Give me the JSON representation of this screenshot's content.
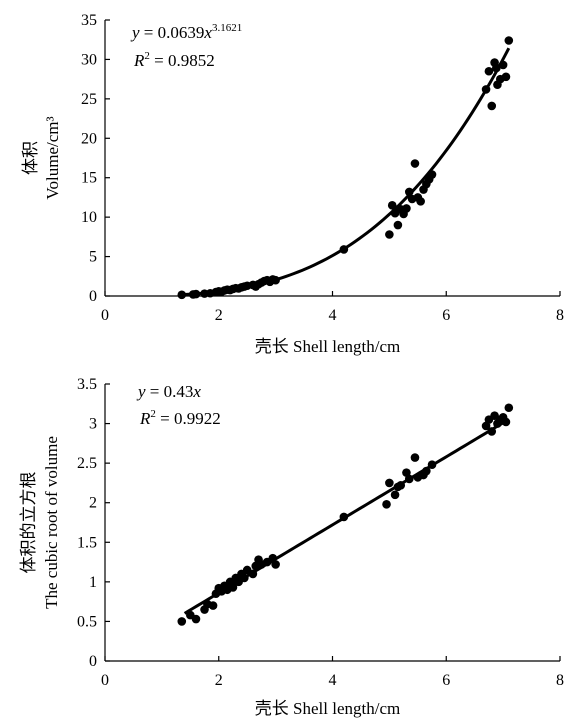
{
  "chart_data": [
    {
      "type": "scatter",
      "xlabel": "壳长 Shell length/cm",
      "ylabel_cn": "体积",
      "ylabel_en": "Volume/cm³",
      "xlim": [
        0,
        8
      ],
      "ylim": [
        0,
        35
      ],
      "xticks": [
        0,
        2,
        4,
        6,
        8
      ],
      "yticks": [
        0,
        5,
        10,
        15,
        20,
        25,
        30,
        35
      ],
      "xtick_labels": [
        "0",
        "2",
        "4",
        "6",
        "8"
      ],
      "ytick_labels": [
        "0",
        "5",
        "10",
        "15",
        "20",
        "25",
        "30",
        "35"
      ],
      "equation": {
        "lhs": "y",
        "rhs": " = 0.0639",
        "var": "x",
        "exponent": "3.1621"
      },
      "r_squared": {
        "label": "R",
        "sup": "2",
        "value": " = 0.9852"
      },
      "fit": {
        "kind": "power",
        "a": 0.0639,
        "b": 3.1621,
        "x_range": [
          1.4,
          7.1
        ]
      },
      "grid": false,
      "points": [
        [
          1.35,
          0.15
        ],
        [
          1.55,
          0.2
        ],
        [
          1.6,
          0.25
        ],
        [
          1.75,
          0.3
        ],
        [
          1.85,
          0.35
        ],
        [
          1.95,
          0.5
        ],
        [
          2.0,
          0.6
        ],
        [
          2.05,
          0.55
        ],
        [
          2.1,
          0.7
        ],
        [
          2.15,
          0.8
        ],
        [
          2.2,
          0.75
        ],
        [
          2.25,
          0.9
        ],
        [
          2.3,
          1.0
        ],
        [
          2.35,
          0.95
        ],
        [
          2.4,
          1.1
        ],
        [
          2.45,
          1.2
        ],
        [
          2.5,
          1.3
        ],
        [
          2.6,
          1.4
        ],
        [
          2.65,
          1.2
        ],
        [
          2.7,
          1.5
        ],
        [
          2.75,
          1.7
        ],
        [
          2.8,
          1.9
        ],
        [
          2.85,
          2.0
        ],
        [
          2.9,
          1.8
        ],
        [
          2.95,
          2.1
        ],
        [
          3.0,
          2.0
        ],
        [
          4.2,
          5.9
        ],
        [
          5.0,
          7.8
        ],
        [
          5.05,
          11.5
        ],
        [
          5.1,
          10.5
        ],
        [
          5.15,
          9.0
        ],
        [
          5.2,
          11.0
        ],
        [
          5.25,
          10.4
        ],
        [
          5.3,
          11.1
        ],
        [
          5.35,
          13.2
        ],
        [
          5.4,
          12.3
        ],
        [
          5.45,
          16.8
        ],
        [
          5.5,
          12.5
        ],
        [
          5.55,
          12.0
        ],
        [
          5.6,
          13.5
        ],
        [
          5.65,
          14.2
        ],
        [
          5.7,
          14.8
        ],
        [
          5.75,
          15.4
        ],
        [
          6.7,
          26.2
        ],
        [
          6.75,
          28.5
        ],
        [
          6.8,
          24.1
        ],
        [
          6.85,
          29.6
        ],
        [
          6.9,
          26.8
        ],
        [
          6.95,
          27.5
        ],
        [
          7.0,
          29.3
        ],
        [
          7.05,
          27.8
        ],
        [
          6.88,
          28.9
        ],
        [
          7.1,
          32.4
        ]
      ]
    },
    {
      "type": "scatter",
      "xlabel": "壳长 Shell length/cm",
      "ylabel_cn": "体积的立方根",
      "ylabel_en": "The cubic root of volume",
      "xlim": [
        0,
        8
      ],
      "ylim": [
        0,
        3.5
      ],
      "xticks": [
        0,
        2,
        4,
        6,
        8
      ],
      "yticks": [
        0,
        0.5,
        1,
        1.5,
        2,
        2.5,
        3,
        3.5
      ],
      "xtick_labels": [
        "0",
        "2",
        "4",
        "6",
        "8"
      ],
      "ytick_labels": [
        "0",
        "0.5",
        "1",
        "1.5",
        "2",
        "2.5",
        "3",
        "3.5"
      ],
      "equation": {
        "lhs": "y",
        "rhs": " = 0.43",
        "var": "x",
        "exponent": ""
      },
      "r_squared": {
        "label": "R",
        "sup": "2",
        "value": " = 0.9922"
      },
      "fit": {
        "kind": "linear",
        "a": 0.43,
        "x_range": [
          1.4,
          7.1
        ]
      },
      "grid": false,
      "points": [
        [
          1.35,
          0.5
        ],
        [
          1.5,
          0.58
        ],
        [
          1.6,
          0.53
        ],
        [
          1.75,
          0.65
        ],
        [
          1.8,
          0.72
        ],
        [
          1.9,
          0.7
        ],
        [
          1.95,
          0.85
        ],
        [
          2.0,
          0.92
        ],
        [
          2.05,
          0.88
        ],
        [
          2.1,
          0.95
        ],
        [
          2.15,
          0.9
        ],
        [
          2.2,
          1.0
        ],
        [
          2.25,
          0.93
        ],
        [
          2.3,
          1.05
        ],
        [
          2.35,
          1.0
        ],
        [
          2.4,
          1.1
        ],
        [
          2.45,
          1.05
        ],
        [
          2.5,
          1.15
        ],
        [
          2.6,
          1.1
        ],
        [
          2.65,
          1.2
        ],
        [
          2.7,
          1.28
        ],
        [
          2.75,
          1.22
        ],
        [
          2.85,
          1.25
        ],
        [
          2.95,
          1.3
        ],
        [
          3.0,
          1.22
        ],
        [
          4.2,
          1.82
        ],
        [
          4.95,
          1.98
        ],
        [
          5.0,
          2.25
        ],
        [
          5.1,
          2.1
        ],
        [
          5.15,
          2.2
        ],
        [
          5.2,
          2.22
        ],
        [
          5.3,
          2.38
        ],
        [
          5.35,
          2.3
        ],
        [
          5.45,
          2.57
        ],
        [
          5.5,
          2.32
        ],
        [
          5.6,
          2.35
        ],
        [
          5.65,
          2.4
        ],
        [
          5.75,
          2.48
        ],
        [
          6.7,
          2.97
        ],
        [
          6.75,
          3.05
        ],
        [
          6.8,
          2.9
        ],
        [
          6.85,
          3.1
        ],
        [
          6.9,
          3.0
        ],
        [
          6.95,
          3.05
        ],
        [
          7.0,
          3.08
        ],
        [
          7.05,
          3.02
        ],
        [
          7.1,
          3.2
        ]
      ]
    }
  ]
}
